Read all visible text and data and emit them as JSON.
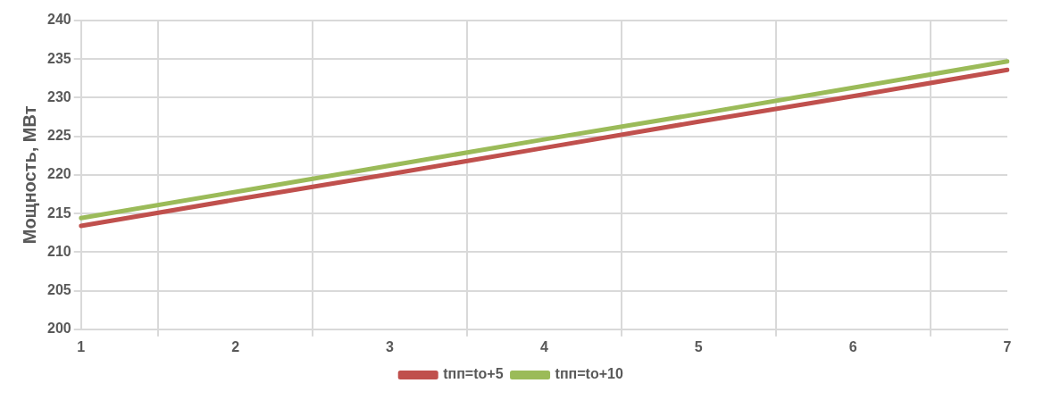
{
  "chart_data": {
    "type": "line",
    "ylabel": "Мощность, МВт",
    "categories": [
      "1",
      "2",
      "3",
      "4",
      "5",
      "6",
      "7"
    ],
    "series": [
      {
        "name": "tпп=to+5",
        "color": "#c0504d",
        "values": [
          213.4,
          216.8,
          220.1,
          223.5,
          226.9,
          230.2,
          233.6
        ]
      },
      {
        "name": "tпп=to+10",
        "color": "#9bbb59",
        "values": [
          214.4,
          217.8,
          221.2,
          224.6,
          227.9,
          231.3,
          234.7
        ]
      }
    ],
    "ylim": [
      200,
      240
    ],
    "yticks": [
      200,
      205,
      210,
      215,
      220,
      225,
      230,
      235,
      240
    ],
    "grid": true,
    "legend": "bottom",
    "marker": "none",
    "line_style": "solid"
  }
}
